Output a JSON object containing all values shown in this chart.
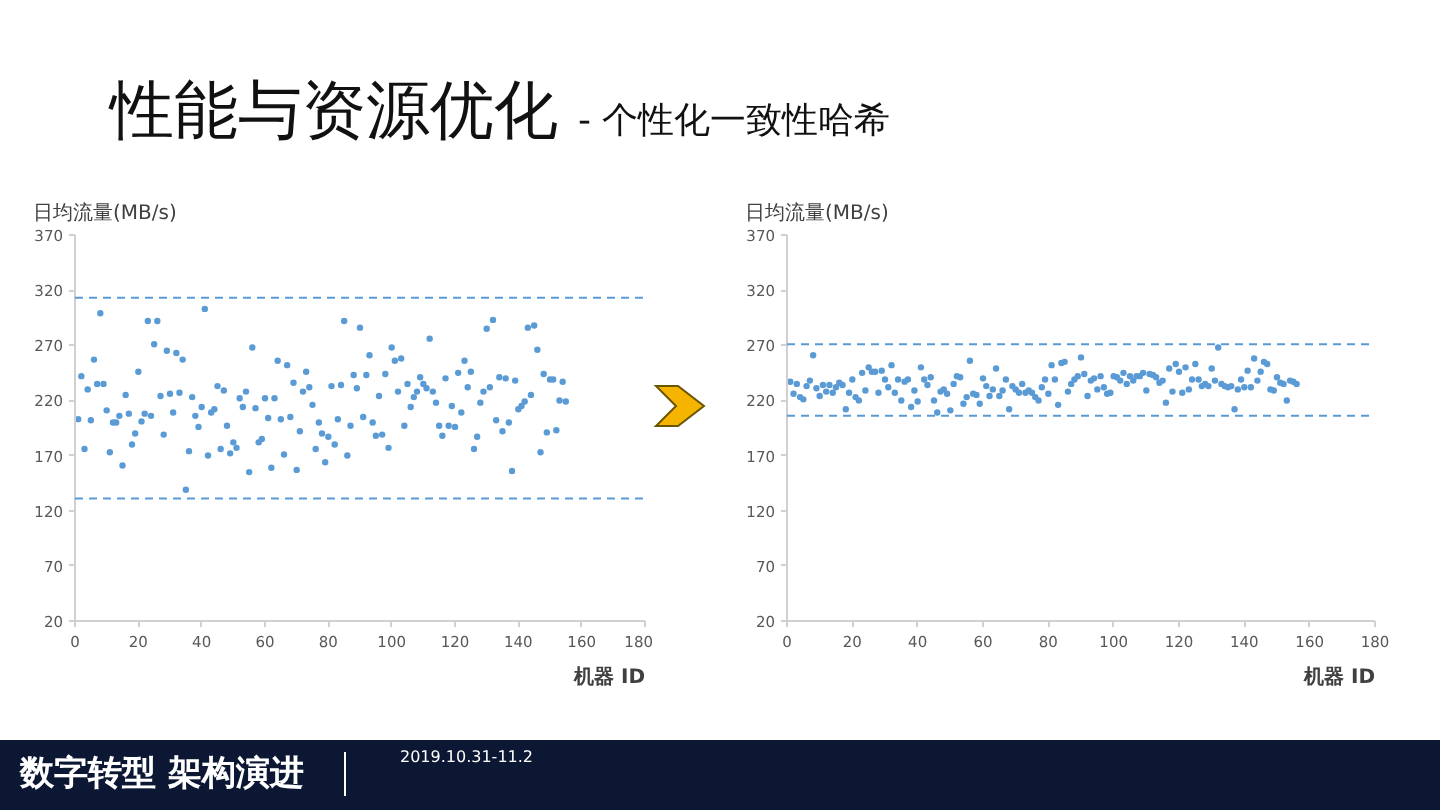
{
  "chart_data": [
    {
      "type": "scatter",
      "title": "性能与资源优化",
      "subtitle": "- 个性化一致性哈希",
      "annotations": [
        "数字转型 架构演进",
        "2019.10.31-11.2"
      ],
      "xlabel": "机器 ID",
      "ylabel": "日均流量(MB/s)",
      "marker": "circle",
      "x": [
        1,
        2,
        3,
        4,
        5,
        6,
        7,
        8,
        9,
        10,
        11,
        12,
        13,
        14,
        15,
        16,
        17,
        18,
        19,
        20,
        21,
        22,
        23,
        24,
        25,
        26,
        27,
        28,
        29,
        30,
        31,
        32,
        33,
        34,
        35,
        36,
        37,
        38,
        39,
        40,
        41,
        42,
        43,
        44,
        45,
        46,
        47,
        48,
        49,
        50,
        51,
        52,
        53,
        54,
        55,
        56,
        57,
        58,
        59,
        60,
        61,
        62,
        63,
        64,
        65,
        66,
        67,
        68,
        69,
        70,
        71,
        72,
        73,
        74,
        75,
        76,
        77,
        78,
        79,
        80,
        81,
        82,
        83,
        84,
        85,
        86,
        87,
        88,
        89,
        90,
        91,
        92,
        93,
        94,
        95,
        96,
        97,
        98,
        99,
        100,
        101,
        102,
        103,
        104,
        105,
        106,
        107,
        108,
        109,
        110,
        111,
        112,
        113,
        114,
        115,
        116,
        117,
        118,
        119,
        120,
        121,
        122,
        123,
        124,
        125,
        126,
        127,
        128,
        129,
        130,
        131,
        132,
        133,
        134,
        135,
        136,
        137,
        138,
        139,
        140,
        141,
        142,
        143,
        144,
        145,
        146,
        147,
        148,
        149,
        150,
        151,
        152,
        153,
        154,
        155
      ],
      "series": [
        {
          "color": "#5b9bd5",
          "values": [
            203,
            242,
            176,
            230,
            202,
            257,
            235,
            299,
            235,
            211,
            173,
            200,
            200,
            206,
            161,
            225,
            208,
            180,
            190,
            246,
            201,
            208,
            292,
            206,
            271,
            292,
            224,
            189,
            265,
            226,
            209,
            263,
            227,
            257,
            139,
            174,
            223,
            206,
            196,
            214,
            303,
            170,
            209,
            212,
            233,
            176,
            229,
            197,
            172,
            182,
            177,
            222,
            214,
            228,
            155,
            268,
            213,
            182,
            185,
            222,
            204,
            159,
            222,
            256,
            203,
            171,
            252,
            205,
            236,
            157,
            192,
            228,
            246,
            232,
            216,
            176,
            200,
            190,
            164,
            187,
            233,
            180,
            203,
            234,
            292,
            170,
            197,
            243,
            231,
            286,
            205,
            243,
            261,
            200,
            188,
            224,
            189,
            244,
            177,
            268,
            256,
            228,
            258,
            197,
            235,
            214,
            223,
            228,
            241,
            235,
            231,
            276,
            228,
            218,
            197,
            188,
            240,
            197,
            215,
            196,
            245,
            209,
            256,
            232,
            246,
            176,
            187,
            218,
            228,
            285,
            232,
            293,
            202,
            241,
            192,
            240,
            200,
            156,
            238,
            212,
            215,
            219,
            286,
            225,
            288,
            266,
            173,
            244,
            191,
            239,
            239,
            193,
            220,
            237,
            219
          ]
        }
      ],
      "xlim": [
        0,
        180
      ],
      "xticks": [
        0,
        20,
        40,
        60,
        80,
        100,
        120,
        140,
        160,
        180
      ],
      "ylim": [
        20,
        370
      ],
      "yticks": [
        20,
        70,
        120,
        170,
        220,
        270,
        320,
        370
      ],
      "ref_lines": [
        {
          "axis": "y",
          "value": 313,
          "color": "#5b9bd5",
          "line_style": "dashed"
        },
        {
          "axis": "y",
          "value": 131,
          "color": "#5b9bd5",
          "line_style": "dashed"
        }
      ]
    },
    {
      "type": "scatter",
      "xlabel": "机器 ID",
      "ylabel": "日均流量(MB/s)",
      "marker": "circle",
      "x": [
        1,
        2,
        3,
        4,
        5,
        6,
        7,
        8,
        9,
        10,
        11,
        12,
        13,
        14,
        15,
        16,
        17,
        18,
        19,
        20,
        21,
        22,
        23,
        24,
        25,
        26,
        27,
        28,
        29,
        30,
        31,
        32,
        33,
        34,
        35,
        36,
        37,
        38,
        39,
        40,
        41,
        42,
        43,
        44,
        45,
        46,
        47,
        48,
        49,
        50,
        51,
        52,
        53,
        54,
        55,
        56,
        57,
        58,
        59,
        60,
        61,
        62,
        63,
        64,
        65,
        66,
        67,
        68,
        69,
        70,
        71,
        72,
        73,
        74,
        75,
        76,
        77,
        78,
        79,
        80,
        81,
        82,
        83,
        84,
        85,
        86,
        87,
        88,
        89,
        90,
        91,
        92,
        93,
        94,
        95,
        96,
        97,
        98,
        99,
        100,
        101,
        102,
        103,
        104,
        105,
        106,
        107,
        108,
        109,
        110,
        111,
        112,
        113,
        114,
        115,
        116,
        117,
        118,
        119,
        120,
        121,
        122,
        123,
        124,
        125,
        126,
        127,
        128,
        129,
        130,
        131,
        132,
        133,
        134,
        135,
        136,
        137,
        138,
        139,
        140,
        141,
        142,
        143,
        144,
        145,
        146,
        147,
        148,
        149,
        150,
        151,
        152,
        153,
        154,
        155,
        156
      ],
      "series": [
        {
          "color": "#5b9bd5",
          "values": [
            237,
            226,
            235,
            223,
            221,
            233,
            238,
            261,
            231,
            224,
            234,
            228,
            234,
            227,
            232,
            236,
            234,
            212,
            227,
            239,
            223,
            220,
            245,
            229,
            250,
            246,
            246,
            227,
            247,
            239,
            232,
            252,
            227,
            239,
            220,
            237,
            239,
            214,
            229,
            219,
            250,
            239,
            234,
            241,
            220,
            209,
            228,
            230,
            226,
            211,
            235,
            242,
            241,
            217,
            223,
            256,
            226,
            225,
            217,
            240,
            233,
            224,
            230,
            249,
            224,
            229,
            239,
            212,
            233,
            230,
            227,
            235,
            227,
            229,
            227,
            223,
            220,
            232,
            239,
            226,
            252,
            239,
            216,
            254,
            255,
            228,
            235,
            239,
            242,
            259,
            244,
            224,
            238,
            240,
            230,
            242,
            232,
            226,
            227,
            242,
            241,
            238,
            245,
            235,
            242,
            238,
            242,
            242,
            245,
            229,
            244,
            243,
            241,
            236,
            238,
            218,
            249,
            228,
            253,
            246,
            227,
            250,
            230,
            239,
            253,
            239,
            233,
            235,
            233,
            249,
            238,
            268,
            235,
            233,
            232,
            233,
            212,
            230,
            239,
            232,
            247,
            232,
            258,
            238,
            246,
            255,
            253,
            230,
            229,
            241,
            236,
            235,
            220,
            238,
            237,
            235
          ]
        }
      ],
      "xlim": [
        0,
        180
      ],
      "xticks": [
        0,
        20,
        40,
        60,
        80,
        100,
        120,
        140,
        160,
        180
      ],
      "ylim": [
        20,
        370
      ],
      "yticks": [
        20,
        70,
        120,
        170,
        220,
        270,
        320,
        370
      ],
      "ref_lines": [
        {
          "axis": "y",
          "value": 271,
          "color": "#5b9bd5",
          "line_style": "dashed"
        },
        {
          "axis": "y",
          "value": 206,
          "color": "#5b9bd5",
          "line_style": "dashed"
        }
      ]
    }
  ]
}
